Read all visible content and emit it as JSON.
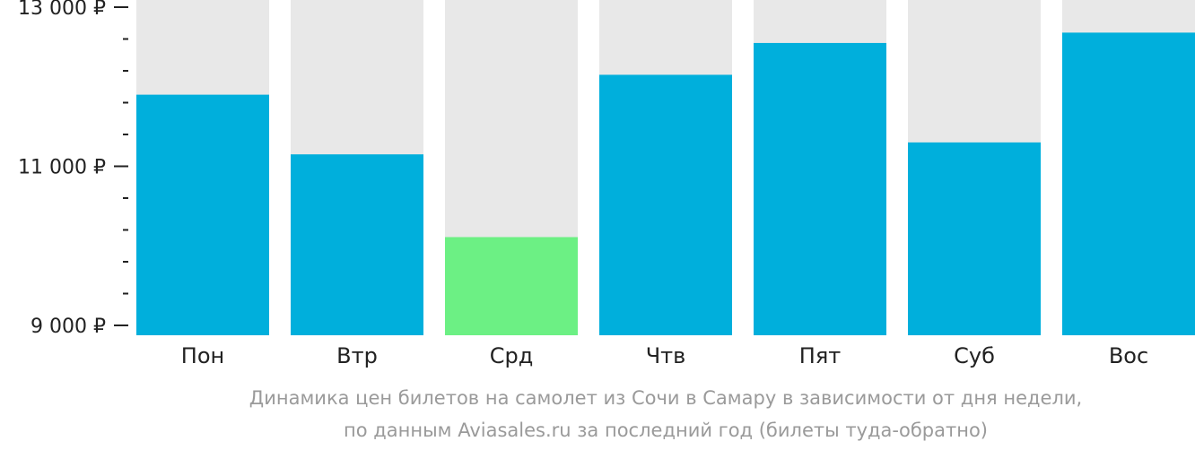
{
  "chart_data": {
    "type": "bar",
    "categories": [
      "Пон",
      "Втр",
      "Срд",
      "Чтв",
      "Пят",
      "Суб",
      "Вос"
    ],
    "values": [
      11900,
      11150,
      10110,
      12150,
      12550,
      11300,
      12680
    ],
    "highlight_index": 2,
    "ylim": [
      9000,
      13000
    ],
    "yticks": [
      {
        "value": 13000,
        "label": "13 000 ₽"
      },
      {
        "value": 11000,
        "label": "11 000 ₽"
      },
      {
        "value": 9000,
        "label": "9 000 ₽"
      }
    ],
    "minor_tick_step": 400,
    "grid": false,
    "caption_lines": [
      "Динамика цен билетов на самолет из Сочи в Самару в зависимости от дня недели,",
      "по данным Aviasales.ru за последний год (билеты туда-обратно)"
    ],
    "colors": {
      "bar": "#00afdc",
      "highlight_bar": "#6cf084",
      "track": "#e8e8e8",
      "axis": "#222222",
      "caption": "#9a9a9a"
    }
  }
}
